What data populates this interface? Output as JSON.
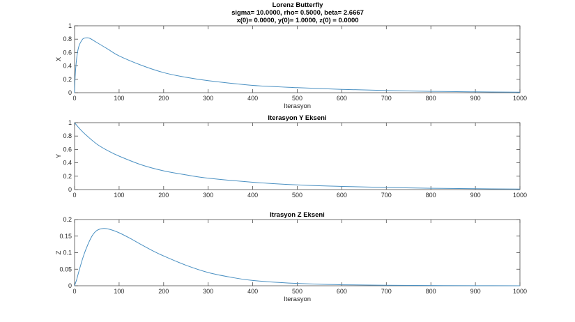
{
  "figure": {
    "title_lines": [
      "Lorenz Butterfly",
      "sigma= 10.0000, rho= 0.5000, beta= 2.6667",
      "x(0)= 0.0000, y(0)= 1.0000, z(0) = 0.0000"
    ],
    "line_color": "#4a90c2",
    "axis_color": "#4d4d4d"
  },
  "chart_data": [
    {
      "type": "line",
      "title": "",
      "xlabel": "Iterasyon",
      "ylabel": "X",
      "xlim": [
        0,
        1000
      ],
      "ylim": [
        0,
        1
      ],
      "xticks": [
        0,
        100,
        200,
        300,
        400,
        500,
        600,
        700,
        800,
        900,
        1000
      ],
      "xtick_labels": [
        "0",
        "100",
        "200",
        "300",
        "400",
        "500",
        "600",
        "700",
        "800",
        "900",
        "1000"
      ],
      "yticks": [
        0,
        0.2,
        0.4,
        0.6,
        0.8,
        1
      ],
      "ytick_labels": [
        "0",
        "0.2",
        "0.4",
        "0.6",
        "0.8",
        "1"
      ],
      "grid": false,
      "series": [
        {
          "name": "x",
          "x": [
            0,
            1,
            3,
            6,
            10,
            15,
            20,
            28,
            35,
            50,
            75,
            100,
            150,
            200,
            250,
            300,
            400,
            500,
            600,
            700,
            800,
            900,
            1000
          ],
          "values": [
            0.0,
            0.2,
            0.4,
            0.58,
            0.7,
            0.77,
            0.81,
            0.82,
            0.81,
            0.75,
            0.65,
            0.55,
            0.41,
            0.3,
            0.23,
            0.18,
            0.11,
            0.075,
            0.05,
            0.032,
            0.02,
            0.013,
            0.008
          ]
        }
      ]
    },
    {
      "type": "line",
      "title": "Iterasyon Y Ekseni",
      "xlabel": "",
      "ylabel": "Y",
      "xlim": [
        0,
        1000
      ],
      "ylim": [
        0,
        1
      ],
      "xticks": [
        0,
        100,
        200,
        300,
        400,
        500,
        600,
        700,
        800,
        900,
        1000
      ],
      "xtick_labels": [
        "0",
        "100",
        "200",
        "300",
        "400",
        "500",
        "600",
        "700",
        "800",
        "900",
        "1000"
      ],
      "yticks": [
        0,
        0.2,
        0.4,
        0.6,
        0.8,
        1
      ],
      "ytick_labels": [
        "0",
        "0.2",
        "0.4",
        "0.6",
        "0.8",
        "1"
      ],
      "grid": false,
      "series": [
        {
          "name": "y",
          "x": [
            0,
            10,
            25,
            50,
            75,
            100,
            150,
            200,
            250,
            300,
            400,
            500,
            600,
            700,
            800,
            900,
            1000
          ],
          "values": [
            1.0,
            0.92,
            0.82,
            0.68,
            0.58,
            0.5,
            0.37,
            0.28,
            0.22,
            0.17,
            0.11,
            0.07,
            0.047,
            0.031,
            0.02,
            0.013,
            0.008
          ]
        }
      ]
    },
    {
      "type": "line",
      "title": "Itrasyon Z Ekseni",
      "xlabel": "Iterasyon",
      "ylabel": "Z",
      "xlim": [
        0,
        1000
      ],
      "ylim": [
        0,
        0.2
      ],
      "xticks": [
        0,
        100,
        200,
        300,
        400,
        500,
        600,
        700,
        800,
        900,
        1000
      ],
      "xtick_labels": [
        "0",
        "100",
        "200",
        "300",
        "400",
        "500",
        "600",
        "700",
        "800",
        "900",
        "1000"
      ],
      "yticks": [
        0,
        0.05,
        0.1,
        0.15,
        0.2
      ],
      "ytick_labels": [
        "0",
        "0.05",
        "0.1",
        "0.15",
        "0.2"
      ],
      "grid": false,
      "series": [
        {
          "name": "z",
          "x": [
            0,
            5,
            10,
            20,
            30,
            40,
            50,
            64,
            80,
            100,
            125,
            150,
            175,
            200,
            250,
            300,
            350,
            400,
            500,
            600,
            700,
            800,
            900,
            1000
          ],
          "values": [
            0.0,
            0.02,
            0.045,
            0.09,
            0.125,
            0.152,
            0.167,
            0.173,
            0.17,
            0.16,
            0.143,
            0.124,
            0.106,
            0.09,
            0.062,
            0.04,
            0.026,
            0.016,
            0.007,
            0.003,
            0.0015,
            0.0007,
            0.0003,
            0.0001
          ]
        }
      ]
    }
  ]
}
